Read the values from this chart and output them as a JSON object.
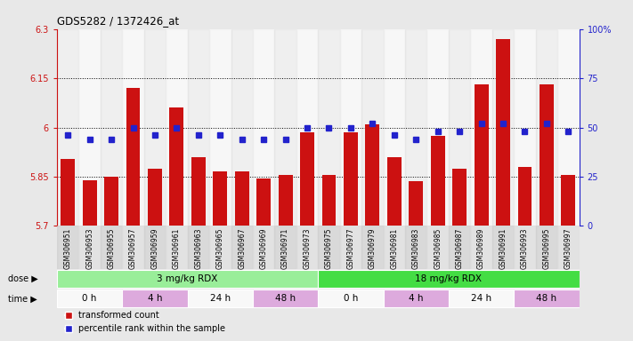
{
  "title": "GDS5282 / 1372426_at",
  "samples": [
    "GSM306951",
    "GSM306953",
    "GSM306955",
    "GSM306957",
    "GSM306959",
    "GSM306961",
    "GSM306963",
    "GSM306965",
    "GSM306967",
    "GSM306969",
    "GSM306971",
    "GSM306973",
    "GSM306975",
    "GSM306977",
    "GSM306979",
    "GSM306981",
    "GSM306983",
    "GSM306985",
    "GSM306987",
    "GSM306989",
    "GSM306991",
    "GSM306993",
    "GSM306995",
    "GSM306997"
  ],
  "bar_values": [
    5.905,
    5.84,
    5.85,
    6.12,
    5.875,
    6.06,
    5.91,
    5.865,
    5.865,
    5.845,
    5.855,
    5.985,
    5.855,
    5.985,
    6.01,
    5.91,
    5.835,
    5.975,
    5.875,
    6.13,
    6.27,
    5.88,
    6.13,
    5.855
  ],
  "percentile_values": [
    46,
    44,
    44,
    50,
    46,
    50,
    46,
    46,
    44,
    44,
    44,
    50,
    50,
    50,
    52,
    46,
    44,
    48,
    48,
    52,
    52,
    48,
    52,
    48
  ],
  "bar_color": "#cc1111",
  "percentile_color": "#2222cc",
  "ymin": 5.7,
  "ymax": 6.3,
  "yticks": [
    5.7,
    5.85,
    6.0,
    6.15,
    6.3
  ],
  "ytick_labels": [
    "5.7",
    "5.85",
    "6",
    "6.15",
    "6.3"
  ],
  "y2min": 0,
  "y2max": 100,
  "y2ticks": [
    0,
    25,
    50,
    75,
    100
  ],
  "y2tick_labels": [
    "0",
    "25",
    "50",
    "75",
    "100%"
  ],
  "dose_groups": [
    {
      "text": "3 mg/kg RDX",
      "start": 0,
      "end": 12,
      "color": "#99ee99"
    },
    {
      "text": "18 mg/kg RDX",
      "start": 12,
      "end": 24,
      "color": "#44dd44"
    }
  ],
  "time_groups": [
    {
      "text": "0 h",
      "start": 0,
      "end": 3,
      "color": "#f8f8f8"
    },
    {
      "text": "4 h",
      "start": 3,
      "end": 6,
      "color": "#ddaadd"
    },
    {
      "text": "24 h",
      "start": 6,
      "end": 9,
      "color": "#f8f8f8"
    },
    {
      "text": "48 h",
      "start": 9,
      "end": 12,
      "color": "#ddaadd"
    },
    {
      "text": "0 h",
      "start": 12,
      "end": 15,
      "color": "#f8f8f8"
    },
    {
      "text": "4 h",
      "start": 15,
      "end": 18,
      "color": "#ddaadd"
    },
    {
      "text": "24 h",
      "start": 18,
      "end": 21,
      "color": "#f8f8f8"
    },
    {
      "text": "48 h",
      "start": 21,
      "end": 24,
      "color": "#ddaadd"
    }
  ],
  "bg_color": "#e8e8e8",
  "plot_bg": "#ffffff"
}
